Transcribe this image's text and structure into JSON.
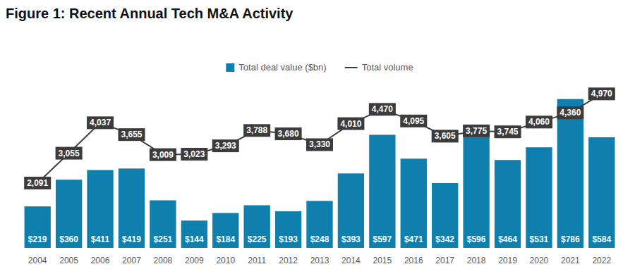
{
  "chart_data": {
    "type": "bar",
    "title": "Figure 1: Recent Annual Tech M&A Activity",
    "categories": [
      "2004",
      "2005",
      "2006",
      "2007",
      "2008",
      "2009",
      "2010",
      "2011",
      "2012",
      "2013",
      "2014",
      "2015",
      "2016",
      "2017",
      "2018",
      "2019",
      "2020",
      "2021",
      "2022"
    ],
    "series": [
      {
        "name": "Total deal value ($bn)",
        "type": "bar",
        "color": "#0f7fae",
        "values": [
          219,
          360,
          411,
          419,
          251,
          144,
          184,
          225,
          193,
          248,
          393,
          597,
          471,
          342,
          596,
          464,
          531,
          786,
          584
        ],
        "value_labels": [
          "$219",
          "$360",
          "$411",
          "$419",
          "$251",
          "$144",
          "$184",
          "$225",
          "$193",
          "$248",
          "$393",
          "$597",
          "$471",
          "$342",
          "$596",
          "$464",
          "$531",
          "$786",
          "$584"
        ]
      },
      {
        "name": "Total volume",
        "type": "line",
        "axis": "y2",
        "color": "#3c3c3c",
        "values": [
          2091,
          3055,
          4037,
          3655,
          3009,
          3023,
          3293,
          3788,
          3680,
          3330,
          4010,
          4470,
          4095,
          3605,
          3775,
          3745,
          4060,
          4360,
          4970
        ],
        "value_labels": [
          "2,091",
          "3,055",
          "4,037",
          "3,655",
          "3,009",
          "3,023",
          "3,293",
          "3,788",
          "3,680",
          "3,330",
          "4,010",
          "4,470",
          "4,095",
          "3,605",
          "3,775",
          "3,745",
          "4,060",
          "4,360",
          "4,970"
        ]
      }
    ],
    "ylim": [
      0,
      900
    ],
    "y2lim": [
      0,
      5500
    ],
    "grid": false,
    "legend": "top",
    "data_labels": true,
    "tick_labels": "x"
  }
}
